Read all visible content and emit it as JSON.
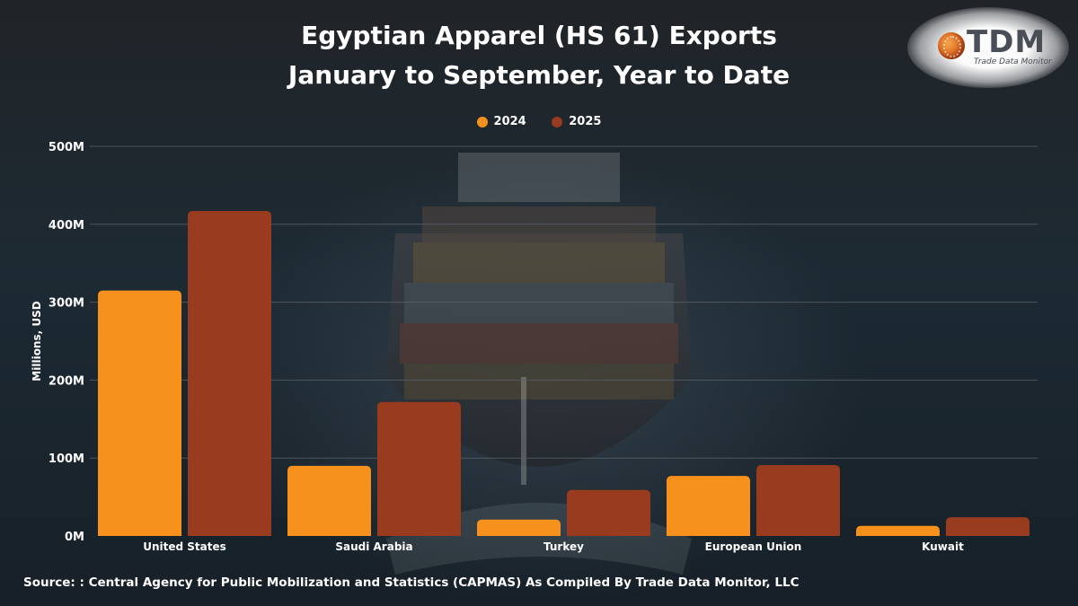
{
  "header": {
    "title_line1": "Egyptian Apparel (HS 61) Exports",
    "title_line2": "January to September, Year to Date"
  },
  "logo": {
    "text": "TDM",
    "subtitle": "Trade Data Monitor",
    "icon": "globe-icon"
  },
  "colors": {
    "series_2024": "#f6911e",
    "series_2025": "#983b1f",
    "grid": "#5a6167",
    "text": "#ffffff"
  },
  "chart_data": {
    "type": "bar",
    "title": "Egyptian Apparel (HS 61) Exports January to September, Year to Date",
    "xlabel": "",
    "ylabel": "Millions, USD",
    "categories": [
      "United States",
      "Saudi Arabia",
      "Turkey",
      "European Union",
      "Kuwait"
    ],
    "series": [
      {
        "name": "2024",
        "values": [
          315,
          90,
          21,
          77,
          13
        ]
      },
      {
        "name": "2025",
        "values": [
          417,
          172,
          59,
          91,
          24
        ]
      }
    ],
    "ylim": [
      0,
      500
    ],
    "yticks": [
      0,
      100,
      200,
      300,
      400,
      500
    ],
    "ytick_labels": [
      "0M",
      "100M",
      "200M",
      "300M",
      "400M",
      "500M"
    ],
    "grid": true,
    "legend": "top-center"
  },
  "footer": {
    "source": "Source: : Central Agency for Public Mobilization and Statistics (CAPMAS) As Compiled By Trade Data Monitor, LLC"
  }
}
